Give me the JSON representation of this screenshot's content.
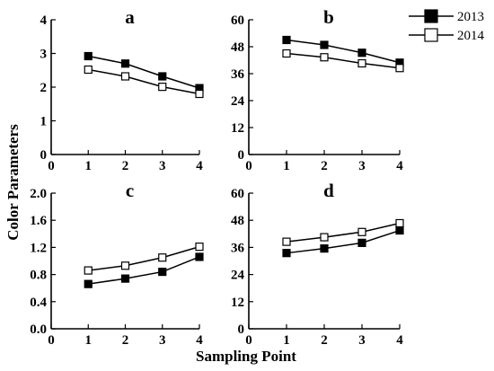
{
  "figure": {
    "ylabel": "Color Parameters",
    "xlabel": "Sampling Point"
  },
  "legend": {
    "placement": "top-right",
    "entries": [
      {
        "label": "2013",
        "marker": "filled-square",
        "color": "#000000"
      },
      {
        "label": "2014",
        "marker": "open-square",
        "color": "#000000"
      }
    ]
  },
  "chart_data": [
    {
      "type": "line",
      "title": "a",
      "x": [
        1,
        2,
        3,
        4
      ],
      "xlim": [
        0,
        4
      ],
      "xticks": [
        "0",
        "1",
        "2",
        "3",
        "4"
      ],
      "ylim": [
        0,
        4
      ],
      "yticks": [
        "0",
        "1",
        "2",
        "3",
        "4"
      ],
      "series": [
        {
          "name": "2013",
          "values": [
            2.92,
            2.7,
            2.32,
            1.97
          ]
        },
        {
          "name": "2014",
          "values": [
            2.52,
            2.32,
            2.01,
            1.8
          ]
        }
      ]
    },
    {
      "type": "line",
      "title": "b",
      "x": [
        1,
        2,
        3,
        4
      ],
      "xlim": [
        0,
        4
      ],
      "xticks": [
        "0",
        "1",
        "2",
        "3",
        "4"
      ],
      "ylim": [
        0,
        60
      ],
      "yticks": [
        "0",
        "12",
        "24",
        "36",
        "48",
        "60"
      ],
      "series": [
        {
          "name": "2013",
          "values": [
            51.0,
            48.8,
            45.3,
            40.9
          ]
        },
        {
          "name": "2014",
          "values": [
            45.0,
            43.3,
            40.6,
            38.5
          ]
        }
      ]
    },
    {
      "type": "line",
      "title": "c",
      "x": [
        1,
        2,
        3,
        4
      ],
      "xlim": [
        0,
        4
      ],
      "xticks": [
        "0",
        "1",
        "2",
        "3",
        "4"
      ],
      "ylim": [
        0,
        2.0
      ],
      "yticks": [
        "0.0",
        "0.4",
        "0.8",
        "1.2",
        "1.6",
        "2.0"
      ],
      "series": [
        {
          "name": "2013",
          "values": [
            0.66,
            0.74,
            0.84,
            1.06
          ]
        },
        {
          "name": "2014",
          "values": [
            0.86,
            0.93,
            1.05,
            1.21
          ]
        }
      ]
    },
    {
      "type": "line",
      "title": "d",
      "x": [
        1,
        2,
        3,
        4
      ],
      "xlim": [
        0,
        4
      ],
      "xticks": [
        "0",
        "1",
        "2",
        "3",
        "4"
      ],
      "ylim": [
        0,
        60
      ],
      "yticks": [
        "0",
        "12",
        "24",
        "36",
        "48",
        "60"
      ],
      "series": [
        {
          "name": "2013",
          "values": [
            33.5,
            35.5,
            38.0,
            43.5
          ]
        },
        {
          "name": "2014",
          "values": [
            38.5,
            40.5,
            42.8,
            46.7
          ]
        }
      ]
    }
  ]
}
